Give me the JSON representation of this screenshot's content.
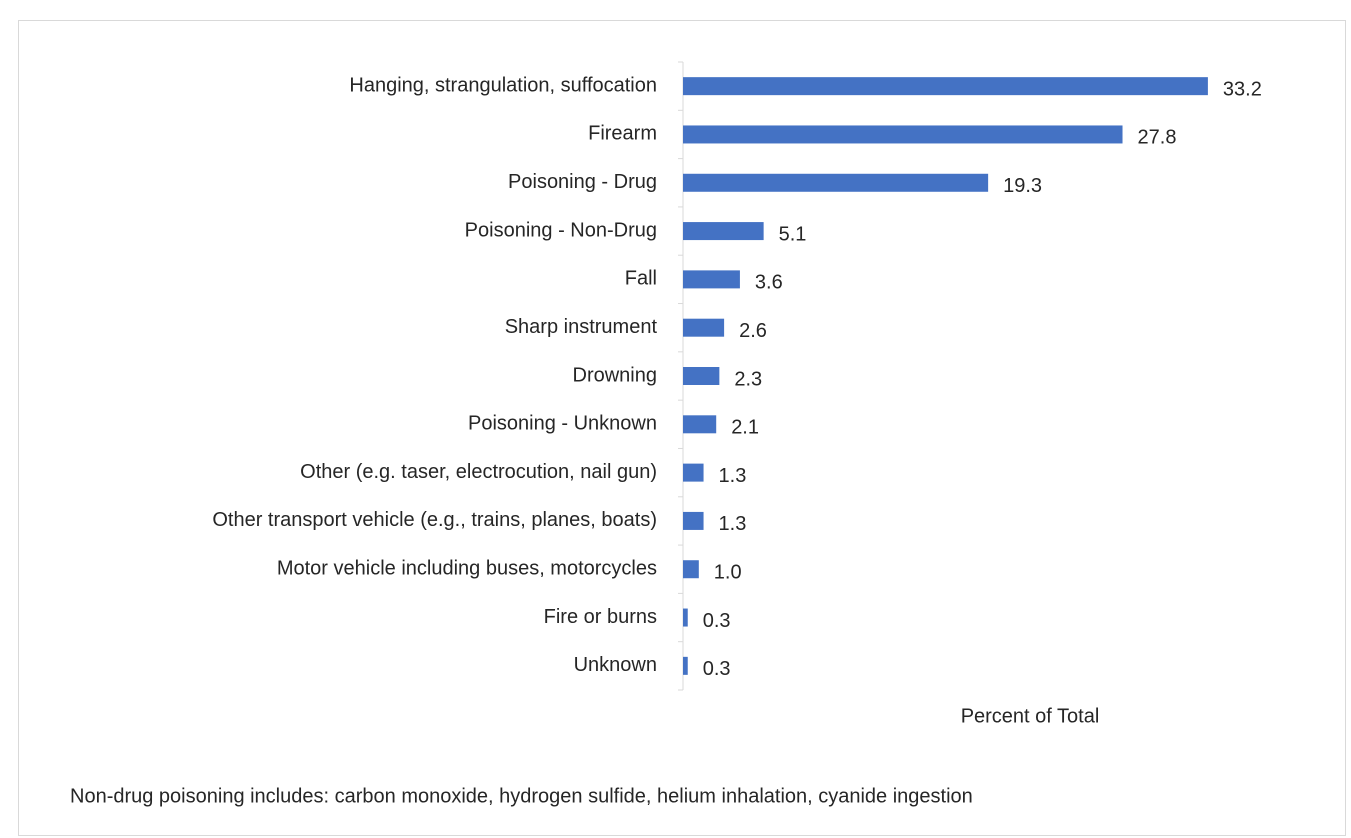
{
  "chart_data": {
    "type": "bar",
    "orientation": "horizontal",
    "categories": [
      "Hanging, strangulation, suffocation",
      "Firearm",
      "Poisoning - Drug",
      "Poisoning - Non-Drug",
      "Fall",
      "Sharp instrument",
      "Drowning",
      "Poisoning - Unknown",
      "Other (e.g. taser, electrocution, nail gun)",
      "Other transport vehicle (e.g., trains, planes, boats)",
      "Motor vehicle including buses, motorcycles",
      "Fire or burns",
      "Unknown"
    ],
    "values": [
      33.2,
      27.8,
      19.3,
      5.1,
      3.6,
      2.6,
      2.3,
      2.1,
      1.3,
      1.3,
      1.0,
      0.3,
      0.3
    ],
    "value_labels": [
      "33.2",
      "27.8",
      "19.3",
      "5.1",
      "3.6",
      "2.6",
      "2.3",
      "2.1",
      "1.3",
      "1.3",
      "1.0",
      "0.3",
      "0.3"
    ],
    "color": "#4472c4",
    "xlim": [
      0,
      35
    ],
    "x_label": "Percent of Total",
    "note": "Non-drug poisoning includes: carbon monoxide, hydrogen sulfide, helium inhalation, cyanide ingestion"
  }
}
